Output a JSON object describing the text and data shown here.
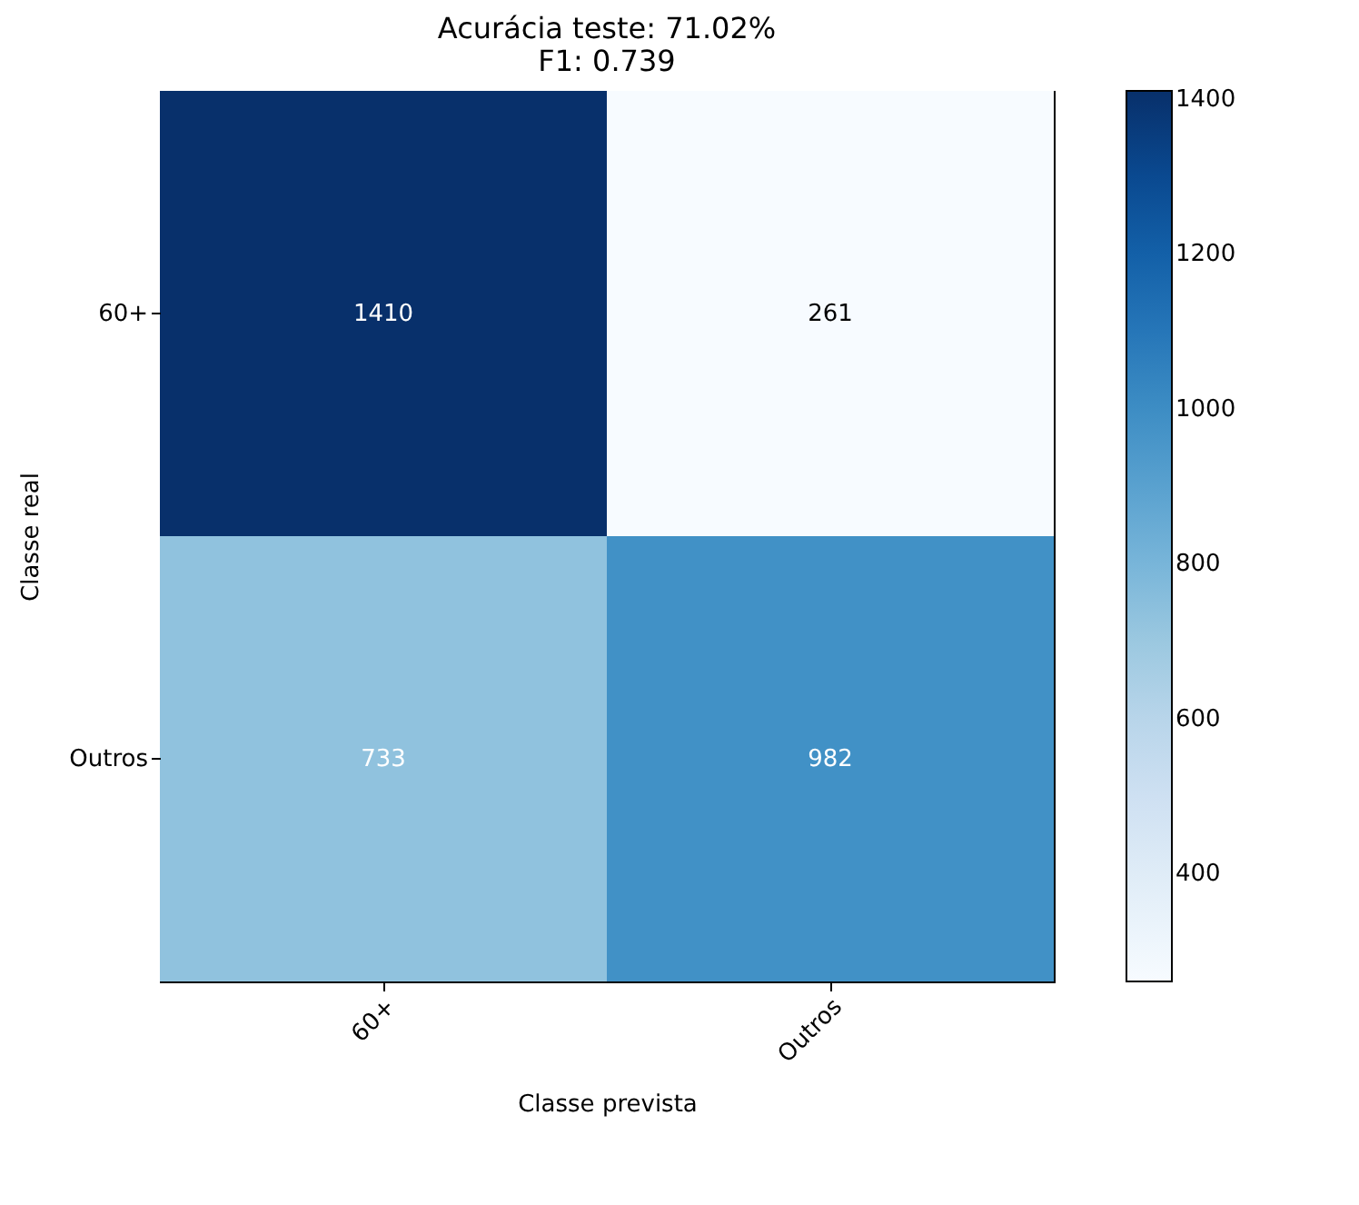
{
  "chart_data": {
    "type": "heatmap",
    "title": "Acurácia teste: 71.02%",
    "subtitle": "F1: 0.739",
    "xlabel": "Classe prevista",
    "ylabel": "Classe real",
    "categories": [
      "60+",
      "Outros"
    ],
    "y_categories": [
      "60+",
      "Outros"
    ],
    "cells": [
      [
        1410,
        261
      ],
      [
        733,
        982
      ]
    ],
    "clim": [
      261,
      1410
    ],
    "cticks": [
      400,
      600,
      800,
      1000,
      1200,
      1400
    ],
    "data_labels": true,
    "grid": false
  }
}
